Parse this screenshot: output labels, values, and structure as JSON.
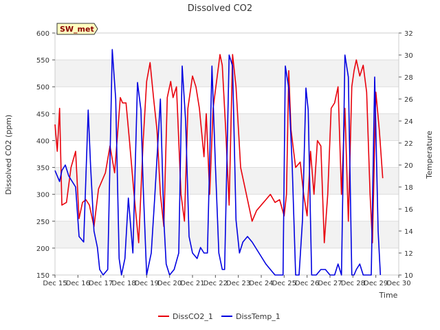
{
  "chart_data": {
    "type": "line",
    "title": "Dissolved CO2",
    "xlabel": "Time",
    "ylabel": "Dissolved CO2 (ppm)",
    "y2label": "Temperature",
    "badge": "SW_met",
    "xlim": [
      15,
      30
    ],
    "ylim": [
      150,
      600
    ],
    "y2lim": [
      10,
      32
    ],
    "x_ticks": [
      15,
      16,
      17,
      18,
      19,
      20,
      21,
      22,
      23,
      24,
      25,
      26,
      27,
      28,
      29,
      30
    ],
    "x_tick_labels": [
      "Dec 15",
      "Dec 16",
      "Dec 17",
      "Dec 18",
      "Dec 19",
      "Dec 20",
      "Dec 21",
      "Dec 22",
      "Dec 23",
      "Dec 24",
      "Dec 25",
      "Dec 26",
      "Dec 27",
      "Dec 28",
      "Dec 29",
      "Dec 30"
    ],
    "y_ticks": [
      150,
      200,
      250,
      300,
      350,
      400,
      450,
      500,
      550,
      600
    ],
    "y2_ticks": [
      10,
      12,
      14,
      16,
      18,
      20,
      22,
      24,
      26,
      28,
      30,
      32
    ],
    "grid": true,
    "legend_position": "bottom",
    "series": [
      {
        "name": "DissCO2_1",
        "color": "#e8000b",
        "axis": "left",
        "x": [
          15.0,
          15.1,
          15.2,
          15.3,
          15.5,
          15.7,
          15.9,
          16.05,
          16.2,
          16.35,
          16.5,
          16.7,
          16.9,
          17.05,
          17.2,
          17.4,
          17.6,
          17.85,
          17.95,
          18.1,
          18.25,
          18.45,
          18.65,
          18.85,
          19.0,
          19.15,
          19.3,
          19.45,
          19.6,
          19.75,
          19.9,
          20.05,
          20.15,
          20.3,
          20.5,
          20.65,
          20.8,
          21.0,
          21.15,
          21.3,
          21.5,
          21.6,
          21.75,
          21.9,
          22.05,
          22.2,
          22.3,
          22.45,
          22.6,
          22.75,
          22.9,
          23.1,
          23.3,
          23.45,
          23.6,
          23.8,
          24.0,
          24.2,
          24.4,
          24.6,
          24.8,
          25.0,
          25.1,
          25.2,
          25.3,
          25.5,
          25.7,
          25.85,
          26.0,
          26.15,
          26.3,
          26.45,
          26.6,
          26.75,
          26.9,
          27.05,
          27.2,
          27.35,
          27.5,
          27.65,
          27.8,
          27.95,
          28.05,
          28.15,
          28.3,
          28.45,
          28.6,
          28.75,
          28.85,
          29.0,
          29.15,
          29.3
        ],
        "y": [
          430,
          380,
          460,
          280,
          285,
          350,
          380,
          255,
          285,
          290,
          280,
          240,
          310,
          325,
          340,
          390,
          340,
          480,
          470,
          470,
          400,
          300,
          210,
          400,
          510,
          545,
          480,
          420,
          300,
          240,
          480,
          510,
          480,
          500,
          300,
          250,
          460,
          520,
          500,
          460,
          370,
          450,
          300,
          460,
          510,
          560,
          540,
          420,
          280,
          560,
          500,
          350,
          310,
          280,
          250,
          270,
          280,
          290,
          300,
          285,
          290,
          260,
          300,
          530,
          420,
          350,
          360,
          300,
          260,
          380,
          300,
          400,
          390,
          210,
          300,
          460,
          470,
          500,
          300,
          460,
          250,
          500,
          530,
          550,
          520,
          540,
          490,
          300,
          210,
          490,
          420,
          330
        ]
      },
      {
        "name": "DissTemp_1",
        "color": "#0000e0",
        "axis": "right",
        "x": [
          15.0,
          15.1,
          15.2,
          15.3,
          15.45,
          15.6,
          15.75,
          15.9,
          16.05,
          16.25,
          16.45,
          16.55,
          16.7,
          16.85,
          16.95,
          17.1,
          17.3,
          17.5,
          17.65,
          17.8,
          17.9,
          18.05,
          18.2,
          18.4,
          18.6,
          18.75,
          18.85,
          19.0,
          19.2,
          19.35,
          19.6,
          19.75,
          19.85,
          20.0,
          20.2,
          20.4,
          20.55,
          20.7,
          20.85,
          21.0,
          21.2,
          21.35,
          21.5,
          21.65,
          21.85,
          22.0,
          22.15,
          22.3,
          22.4,
          22.6,
          22.75,
          22.9,
          23.05,
          23.2,
          23.4,
          23.6,
          23.75,
          23.9,
          24.05,
          24.2,
          24.4,
          24.6,
          24.8,
          24.95,
          25.05,
          25.2,
          25.35,
          25.5,
          25.65,
          25.8,
          25.95,
          26.05,
          26.2,
          26.4,
          26.6,
          26.8,
          27.0,
          27.2,
          27.35,
          27.5,
          27.65,
          27.8,
          27.95,
          28.05,
          28.15,
          28.3,
          28.45,
          28.65,
          28.8,
          28.95,
          29.1,
          29.2
        ],
        "y": [
          19.5,
          19.0,
          18.5,
          19.5,
          20.0,
          19.0,
          18.5,
          18.0,
          13.5,
          13.0,
          25.0,
          20.0,
          14.0,
          12.5,
          10.5,
          10.0,
          10.5,
          30.5,
          26.0,
          11.5,
          10.0,
          11.5,
          17.0,
          12.0,
          27.5,
          25.0,
          18.0,
          10.0,
          12.0,
          17.0,
          26.0,
          15.0,
          11.0,
          10.0,
          10.5,
          12.0,
          29.0,
          24.0,
          13.5,
          12.0,
          11.5,
          12.5,
          12.0,
          12.0,
          29.0,
          20.0,
          12.0,
          10.5,
          10.5,
          30.0,
          29.0,
          15.0,
          12.0,
          13.0,
          13.5,
          13.0,
          12.5,
          12.0,
          11.5,
          11.0,
          10.5,
          10.0,
          10.0,
          10.0,
          29.0,
          27.0,
          20.0,
          10.0,
          10.0,
          15.0,
          27.0,
          25.0,
          10.0,
          10.0,
          10.5,
          10.5,
          10.0,
          10.0,
          11.0,
          10.0,
          30.0,
          28.0,
          10.0,
          10.0,
          10.5,
          11.0,
          10.0,
          10.0,
          10.0,
          28.0,
          14.0,
          10.0
        ]
      }
    ]
  }
}
